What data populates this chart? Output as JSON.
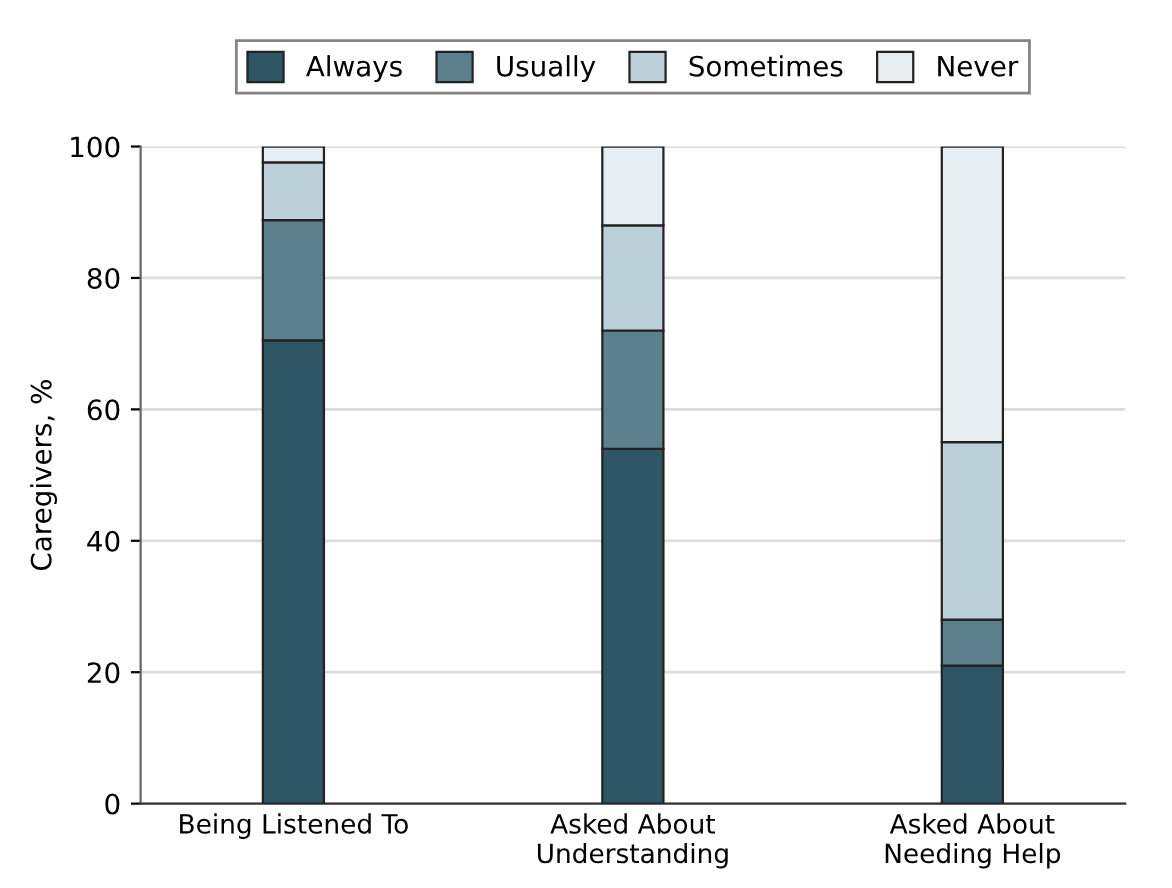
{
  "chart_data": {
    "type": "bar",
    "stacked": true,
    "ylabel": "Caregivers, %",
    "categories": [
      "Being Listened To",
      "Asked About\nUnderstanding",
      "Asked About\nNeeding Help"
    ],
    "series": [
      {
        "name": "Always",
        "color": "#2e5665",
        "values": [
          70.5,
          54,
          21
        ]
      },
      {
        "name": "Usually",
        "color": "#5b7f8c",
        "values": [
          18.3,
          18,
          7
        ]
      },
      {
        "name": "Sometimes",
        "color": "#bcd0d9",
        "values": [
          8.8,
          16,
          27
        ]
      },
      {
        "name": "Never",
        "color": "#e6eef1",
        "values": [
          2.4,
          12,
          45
        ]
      }
    ],
    "ylim": [
      0,
      100
    ],
    "yticks": [
      0,
      20,
      40,
      60,
      80,
      100
    ],
    "grid": "y",
    "legend": "top"
  }
}
